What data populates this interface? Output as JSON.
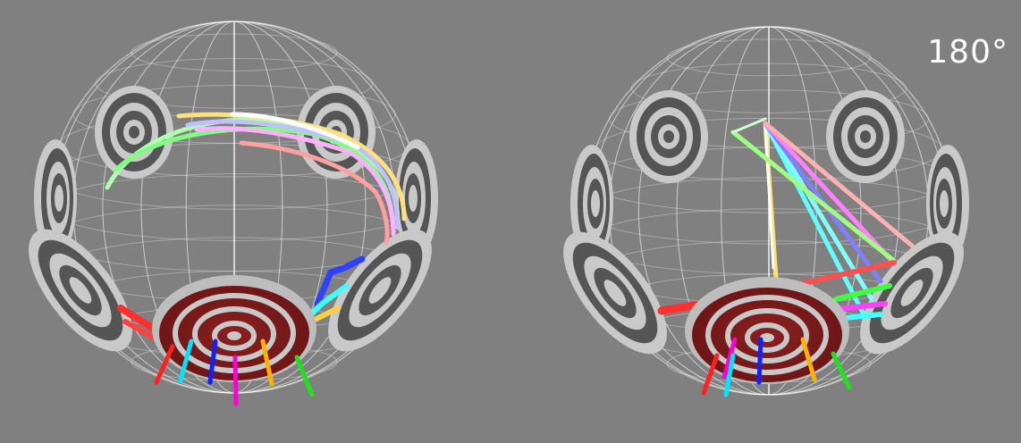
{
  "view": {
    "angle_label": "180°",
    "background": "#808080",
    "sphere_wire_color": "#ffffff",
    "target_fill_color": "#7a1c1c",
    "target_ring_color": "#c8c8c8",
    "side_target_dark": "#555555",
    "side_target_light": "#c9c9c9"
  },
  "trajectories": {
    "colors": [
      "#ff2020",
      "#00e5ff",
      "#1020ff",
      "#ff00d0",
      "#ffb000",
      "#20e020"
    ],
    "names": [
      "red",
      "cyan",
      "blue",
      "magenta",
      "orange",
      "green"
    ]
  }
}
